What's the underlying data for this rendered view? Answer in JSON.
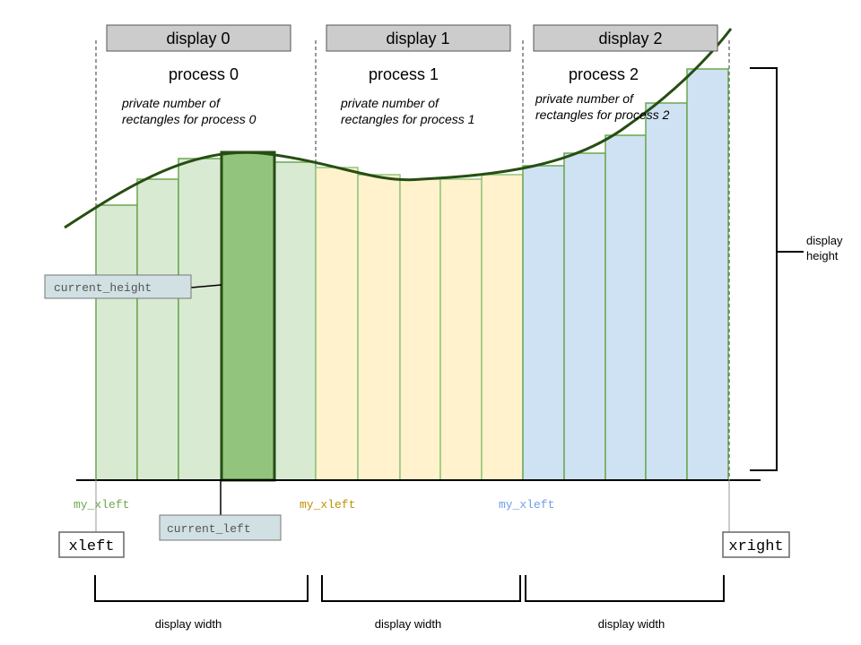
{
  "displays": [
    {
      "header": "display 0",
      "process": "process 0",
      "note_line1": "private number of",
      "note_line2": "rectangles for process 0",
      "my_xleft": "my_xleft",
      "width_label": "display width"
    },
    {
      "header": "display 1",
      "process": "process 1",
      "note_line1": "private number of",
      "note_line2": "rectangles for process 1",
      "my_xleft": "my_xleft",
      "width_label": "display width"
    },
    {
      "header": "display 2",
      "process": "process 2",
      "note_line1": "private number of",
      "note_line2": "rectangles for process 2",
      "my_xleft": "my_xleft",
      "width_label": "display width"
    }
  ],
  "labels": {
    "current_height": "current_height",
    "current_left": "current_left",
    "xleft": "xleft",
    "xright": "xright",
    "display_height_line1": "display",
    "display_height_line2": "height"
  },
  "colors": {
    "p0_fill": "#d9ead3",
    "p0_stroke": "#6aa84f",
    "p0_highlight": "#93c47d",
    "p0_highlight_stroke": "#274e13",
    "p1_fill": "#fff2cc",
    "p1_stroke": "#93c47d",
    "p2_fill": "#cfe2f3",
    "p2_stroke": "#6aa84f",
    "curve": "#274e13",
    "header_bg": "#cccccc",
    "label_bg": "#d0e0e3",
    "my_xleft_p0": "#6aa84f",
    "my_xleft_p1": "#bf9000",
    "my_xleft_p2": "#6d9eeb"
  }
}
